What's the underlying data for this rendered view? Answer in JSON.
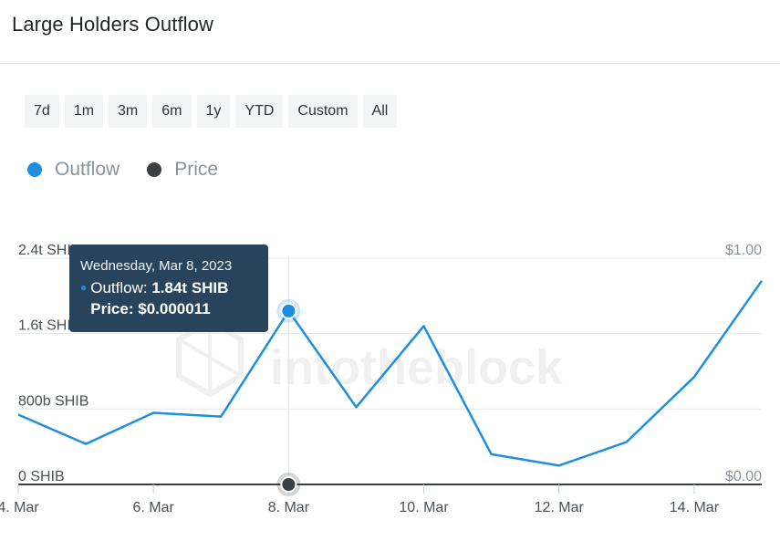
{
  "title": "Large Holders Outflow",
  "ranges": [
    "7d",
    "1m",
    "3m",
    "6m",
    "1y",
    "YTD",
    "Custom",
    "All"
  ],
  "legend": [
    {
      "label": "Outflow",
      "color": "#1e8fe0"
    },
    {
      "label": "Price",
      "color": "#3a3f44"
    }
  ],
  "watermark": "intotheblock",
  "tooltip": {
    "date": "Wednesday, Mar 8, 2023",
    "outflow_label": "Outflow: ",
    "outflow_value": "1.84t SHIB",
    "price_label": "Price: ",
    "price_value": "$0.000011"
  },
  "chart_data": {
    "type": "line",
    "x": [
      "4. Mar",
      "5. Mar",
      "6. Mar",
      "7. Mar",
      "8. Mar",
      "9. Mar",
      "10. Mar",
      "11. Mar",
      "12. Mar",
      "13. Mar",
      "14. Mar",
      "15. Mar"
    ],
    "xticks": [
      "4. Mar",
      "6. Mar",
      "8. Mar",
      "10. Mar",
      "12. Mar",
      "14. Mar"
    ],
    "series": [
      {
        "name": "Outflow",
        "axis": "left",
        "unit": "SHIB",
        "values": [
          740000000000,
          430000000000,
          760000000000,
          720000000000,
          1840000000000,
          820000000000,
          1680000000000,
          320000000000,
          200000000000,
          450000000000,
          1140000000000,
          2160000000000
        ]
      },
      {
        "name": "Price",
        "axis": "right",
        "points": [
          {
            "x": "8. Mar",
            "y": 1.1e-05
          }
        ]
      }
    ],
    "y_left": {
      "range": [
        0,
        2400000000000
      ],
      "ticks": [
        "0 SHIB",
        "800b SHIB",
        "1.6t SHIB",
        "2.4t SHIB"
      ]
    },
    "y_right": {
      "range": [
        0,
        1
      ],
      "ticks": [
        "$0.00",
        "$1.00"
      ]
    },
    "highlight_index": 4,
    "grid": true
  }
}
